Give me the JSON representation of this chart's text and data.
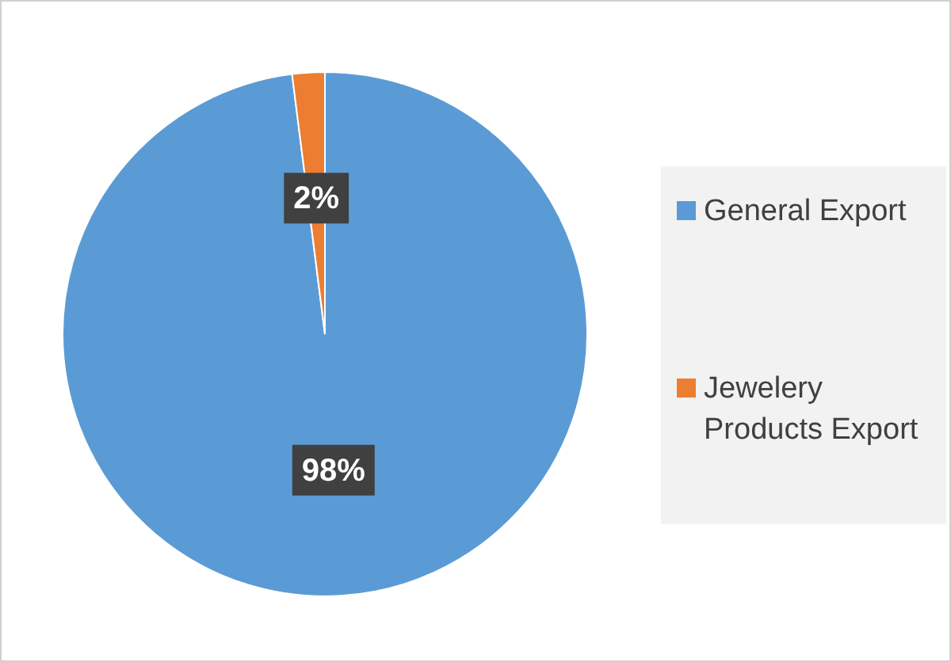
{
  "chart_data": {
    "type": "pie",
    "categories": [
      "General Export",
      "Jewelery Products Export"
    ],
    "values": [
      98,
      2
    ],
    "value_labels": [
      "98%",
      "2%"
    ],
    "colors": [
      "#5b9bd5",
      "#ed7d31"
    ],
    "legend": "right"
  }
}
